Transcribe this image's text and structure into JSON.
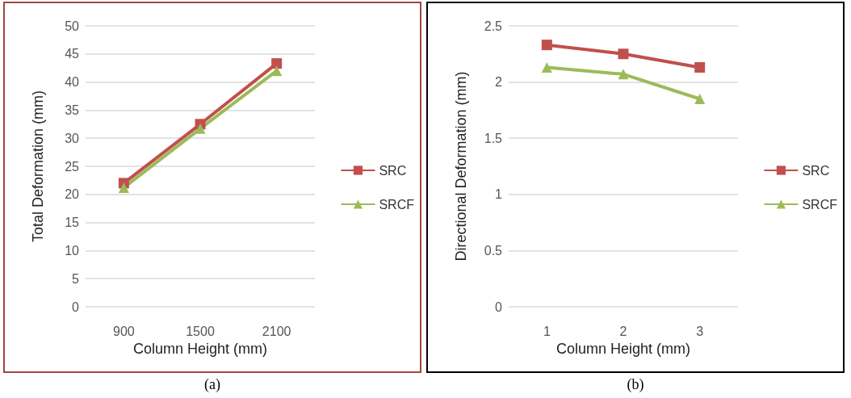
{
  "chart_data": [
    {
      "type": "line",
      "xlabel": "Column Height (mm)",
      "ylabel": "Total Deformation (mm)",
      "categories": [
        "900",
        "1500",
        "2100"
      ],
      "series": [
        {
          "name": "SRC",
          "color": "#c0504d",
          "values": [
            22,
            32.5,
            43.3
          ],
          "marker": "square"
        },
        {
          "name": "SRCF",
          "color": "#9bbb59",
          "values": [
            21.2,
            31.7,
            42
          ],
          "marker": "triangle"
        }
      ],
      "ylim": [
        0,
        50
      ],
      "yticks": [
        0,
        5,
        10,
        15,
        20,
        25,
        30,
        35,
        40,
        45,
        50
      ],
      "grid": "y",
      "legend": "right",
      "annotations": [
        "(a)"
      ]
    },
    {
      "type": "line",
      "xlabel": "Column Height (mm)",
      "ylabel": "Directional Deformation (mm)",
      "categories": [
        "1",
        "2",
        "3"
      ],
      "series": [
        {
          "name": "SRC",
          "color": "#c0504d",
          "values": [
            2.33,
            2.25,
            2.13
          ],
          "marker": "square"
        },
        {
          "name": "SRCF",
          "color": "#9bbb59",
          "values": [
            2.13,
            2.07,
            1.85
          ],
          "marker": "triangle"
        }
      ],
      "ylim": [
        0,
        2.5
      ],
      "yticks": [
        0,
        0.5,
        1,
        1.5,
        2,
        2.5
      ],
      "grid": "y",
      "legend": "right",
      "annotations": [
        "(b)"
      ]
    }
  ]
}
